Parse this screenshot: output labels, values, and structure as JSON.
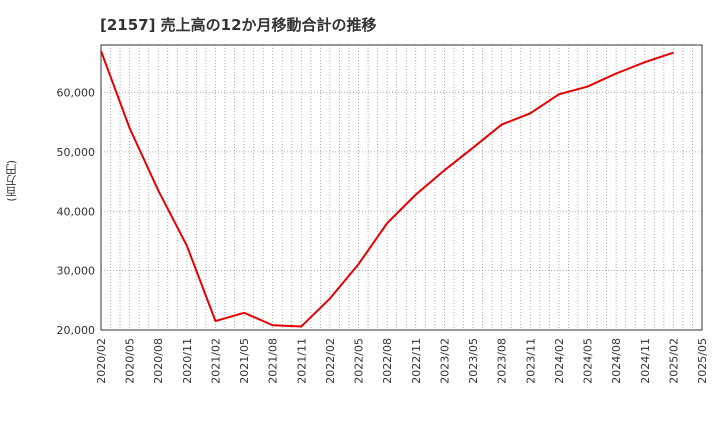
{
  "chart_data": {
    "type": "line",
    "title": "[2157]  売上高の12か月移動合計の推移",
    "ylabel": "(百万円)",
    "xlabel": "",
    "ylim": [
      20000,
      68000
    ],
    "yticks": [
      20000,
      30000,
      40000,
      50000,
      60000
    ],
    "ytick_labels": [
      "20,000",
      "30,000",
      "40,000",
      "50,000",
      "60,000"
    ],
    "xtick_labels": [
      "2020/02",
      "2020/05",
      "2020/08",
      "2020/11",
      "2021/02",
      "2021/05",
      "2021/08",
      "2021/11",
      "2022/02",
      "2022/05",
      "2022/08",
      "2022/11",
      "2023/02",
      "2023/05",
      "2023/08",
      "2023/11",
      "2024/02",
      "2024/05",
      "2024/08",
      "2024/11",
      "2025/02",
      "2025/05"
    ],
    "grid": true,
    "series": [
      {
        "name": "売上高の12か月移動合計",
        "color": "#e60000",
        "x": [
          "2020/02",
          "2020/05",
          "2020/08",
          "2020/11",
          "2021/02",
          "2021/05",
          "2021/08",
          "2021/11",
          "2022/02",
          "2022/05",
          "2022/08",
          "2022/11",
          "2023/02",
          "2023/05",
          "2023/08",
          "2023/11",
          "2024/02",
          "2024/05",
          "2024/08",
          "2024/11",
          "2025/02"
        ],
        "values": [
          67000,
          54000,
          43500,
          34200,
          21500,
          22900,
          20800,
          20600,
          25300,
          31100,
          38000,
          42800,
          46900,
          50700,
          54600,
          56500,
          59700,
          61000,
          63200,
          65100,
          66700
        ]
      }
    ]
  }
}
